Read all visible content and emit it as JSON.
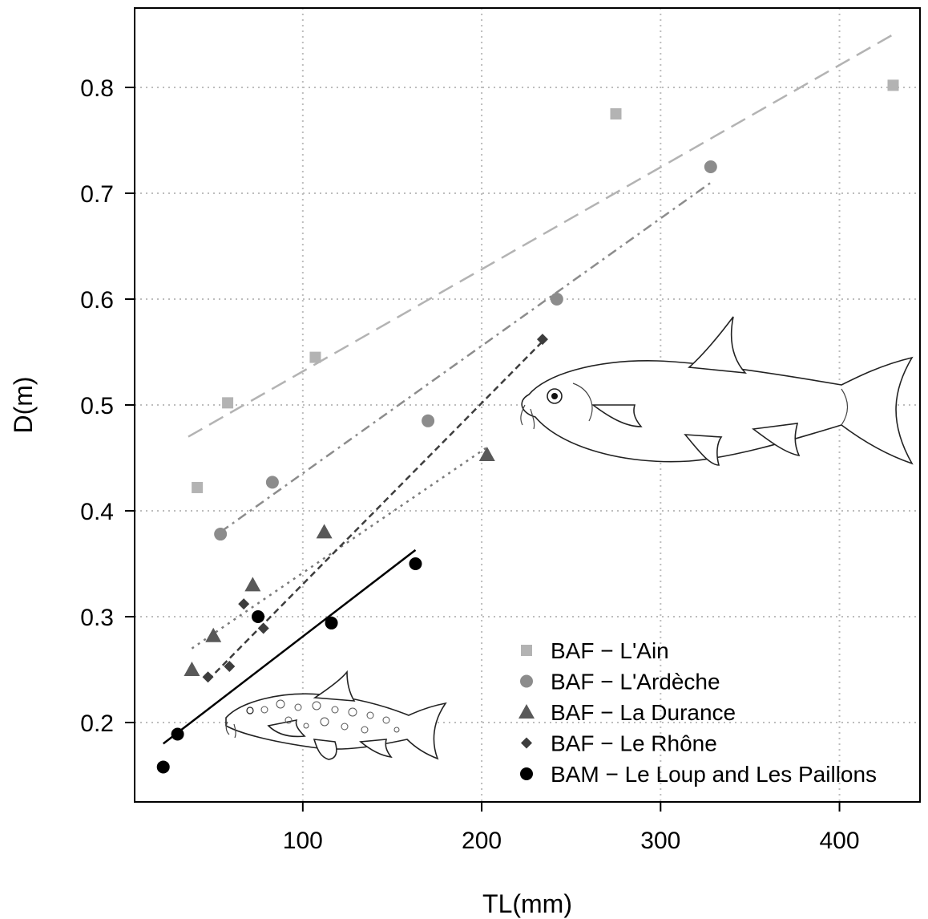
{
  "chart_data": {
    "type": "scatter",
    "xlabel": "TL(mm)",
    "ylabel": "D(m)",
    "xlim": [
      6,
      445
    ],
    "ylim": [
      0.125,
      0.875
    ],
    "x_ticks": [
      100,
      200,
      300,
      400
    ],
    "y_ticks": [
      0.2,
      0.3,
      0.4,
      0.5,
      0.6,
      0.7,
      0.8
    ],
    "x_tick_labels": [
      "100",
      "200",
      "300",
      "400"
    ],
    "y_tick_labels": [
      "0.2",
      "0.3",
      "0.4",
      "0.5",
      "0.6",
      "0.7",
      "0.8"
    ],
    "grid": true,
    "legend_position": "bottom-right",
    "series": [
      {
        "name": "BAF − L'Ain",
        "marker": "square",
        "color": "#b3b3b3",
        "x": [
          41,
          58,
          107,
          275,
          430
        ],
        "y": [
          0.422,
          0.502,
          0.545,
          0.775,
          0.802
        ],
        "fit": {
          "x": [
            36,
            430
          ],
          "y": [
            0.47,
            0.85
          ],
          "dash": "20 10",
          "color": "#b3b3b3"
        }
      },
      {
        "name": "BAF − L'Ardèche",
        "marker": "circle",
        "color": "#8c8c8c",
        "x": [
          54,
          83,
          170,
          242,
          328
        ],
        "y": [
          0.378,
          0.427,
          0.485,
          0.6,
          0.725
        ],
        "fit": {
          "x": [
            54,
            328
          ],
          "y": [
            0.38,
            0.71
          ],
          "dash": "12 6 3 6",
          "color": "#8c8c8c"
        }
      },
      {
        "name": "BAF − La Durance",
        "marker": "triangle",
        "color": "#595959",
        "x": [
          38,
          50,
          72,
          112,
          203
        ],
        "y": [
          0.25,
          0.282,
          0.33,
          0.38,
          0.453
        ],
        "fit": {
          "x": [
            38,
            203
          ],
          "y": [
            0.27,
            0.46
          ],
          "dash": "3 6",
          "color": "#7a7a7a"
        }
      },
      {
        "name": "BAF − Le Rhône",
        "marker": "diamond",
        "color": "#3d3d3d",
        "x": [
          47,
          59,
          67,
          78,
          234
        ],
        "y": [
          0.243,
          0.253,
          0.312,
          0.289,
          0.562
        ],
        "fit": {
          "x": [
            47,
            234
          ],
          "y": [
            0.24,
            0.56
          ],
          "dash": "8 5",
          "color": "#3d3d3d"
        }
      },
      {
        "name": "BAM − Le Loup and Les Paillons",
        "marker": "circle",
        "color": "#000000",
        "x": [
          22,
          30,
          75,
          116,
          163
        ],
        "y": [
          0.158,
          0.189,
          0.3,
          0.294,
          0.35
        ],
        "fit": {
          "x": [
            22,
            163
          ],
          "y": [
            0.18,
            0.363
          ],
          "dash": "",
          "color": "#000000"
        }
      }
    ]
  },
  "colors": {
    "axis": "#000000",
    "grid": "#bdbdbd",
    "background": "#ffffff"
  },
  "illustrations": [
    "barbel-fish-illustration",
    "spotted-barbel-fish-illustration"
  ]
}
